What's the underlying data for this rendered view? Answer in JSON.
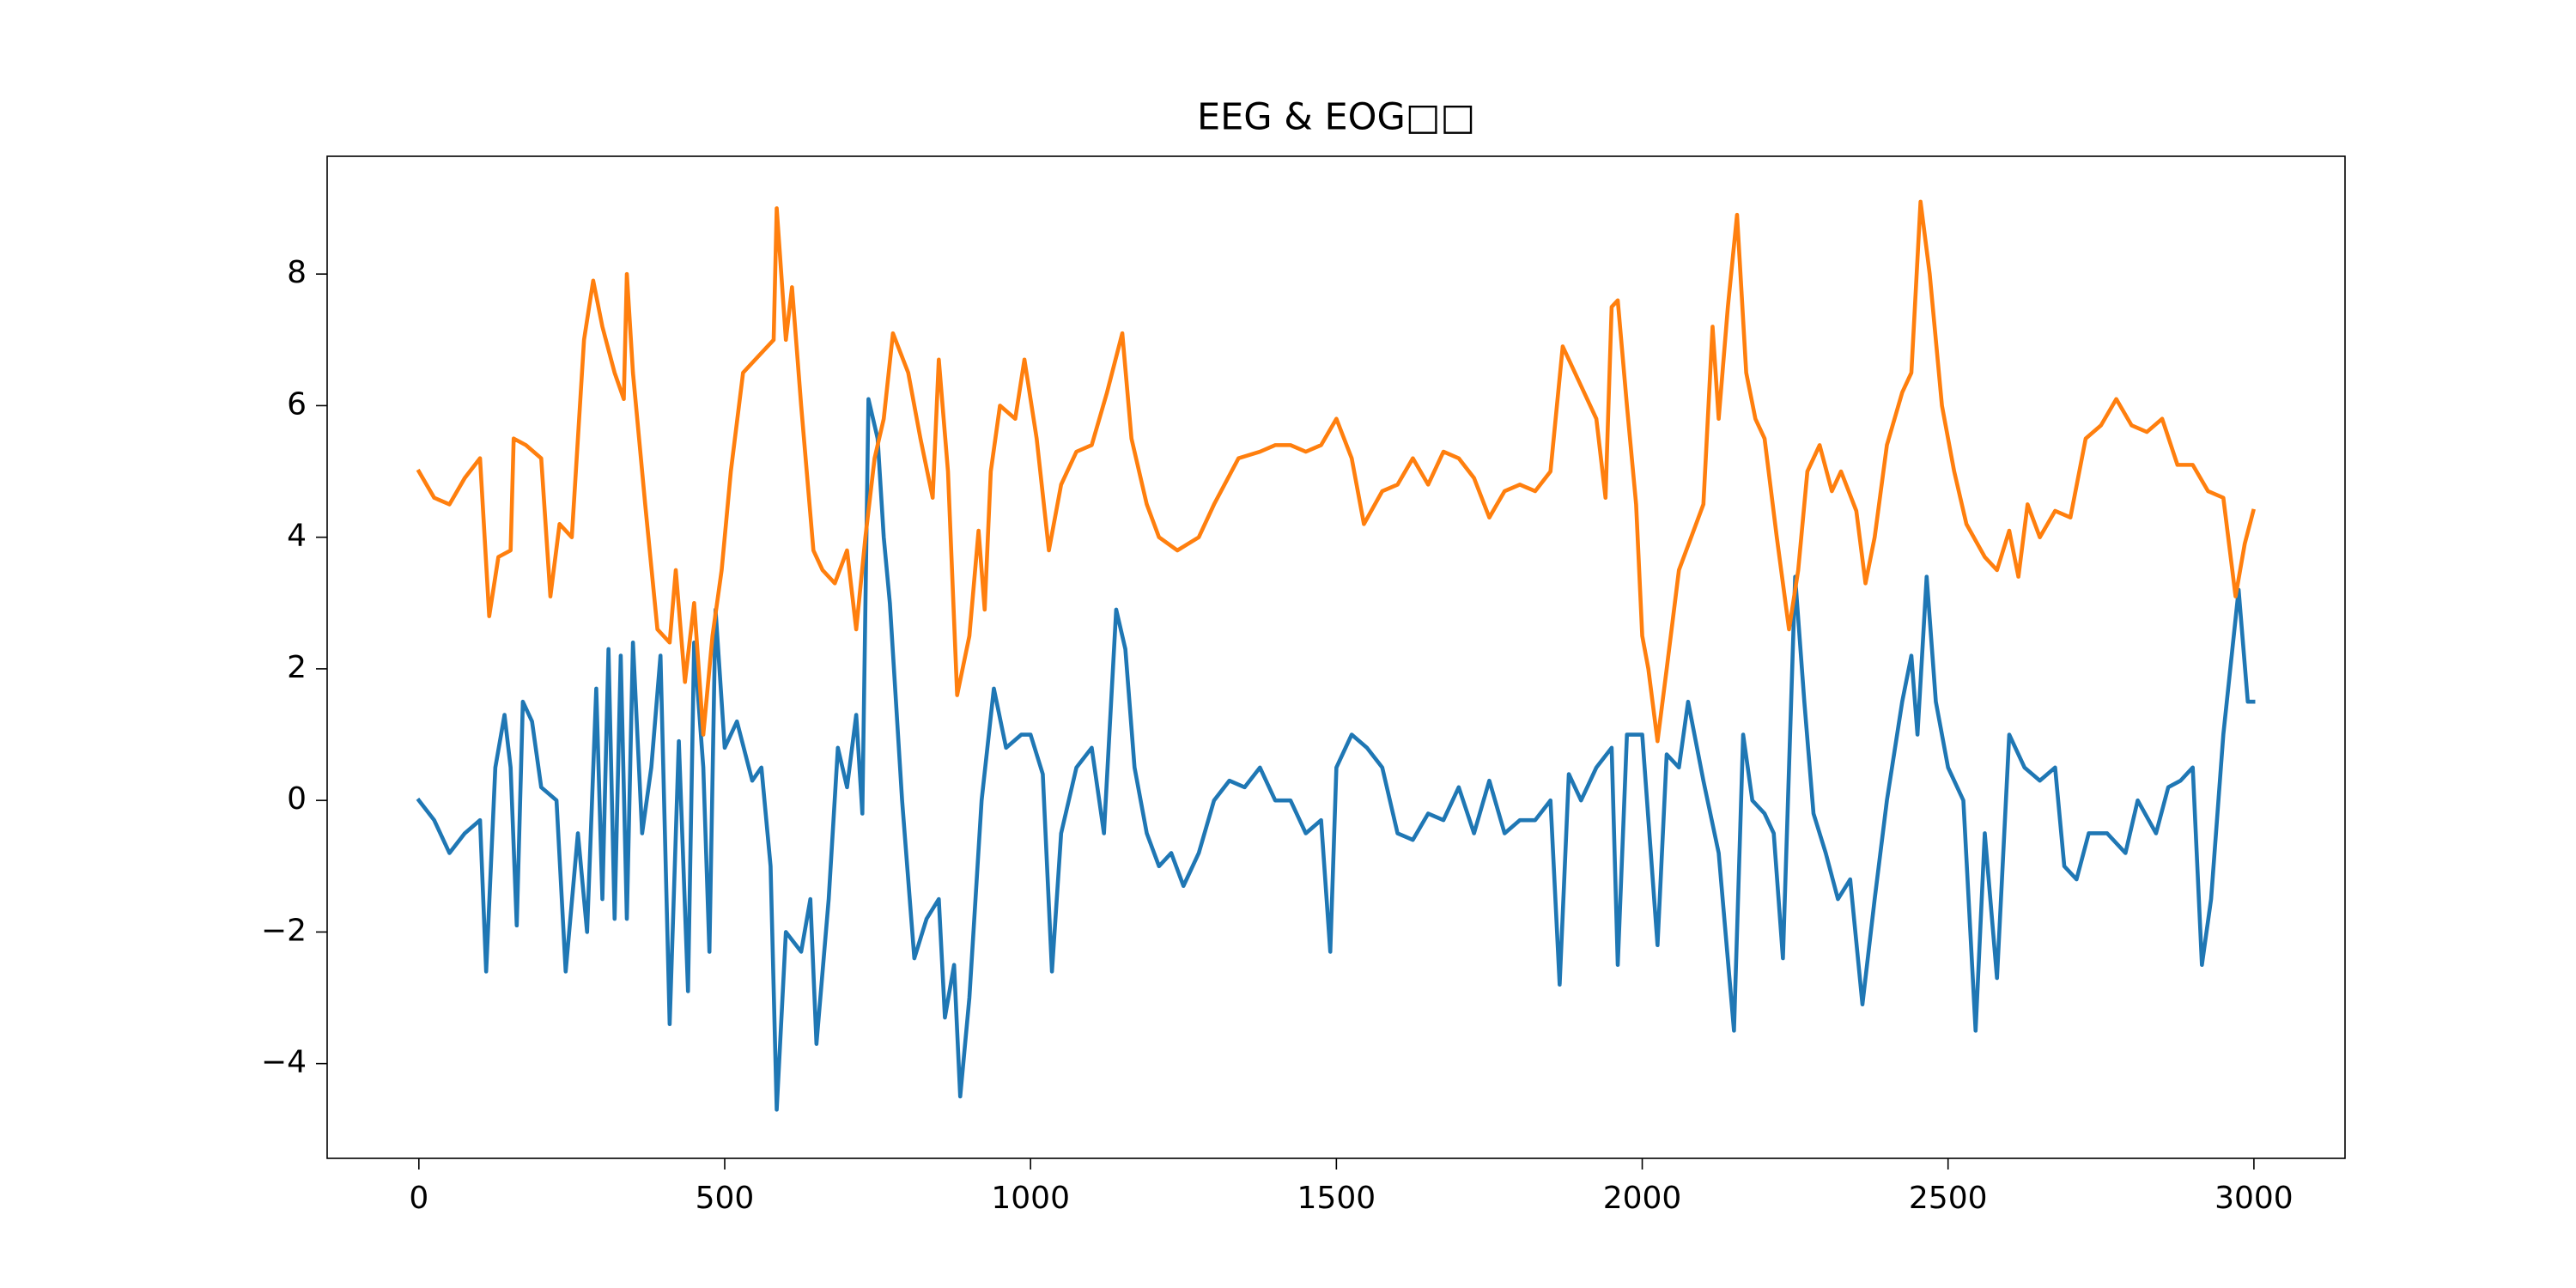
{
  "chart_data": {
    "type": "line",
    "title": "EEG & EOG□□",
    "xlim": [
      -149.95,
      3148.95
    ],
    "xticks": [
      0,
      500,
      1000,
      1500,
      2000,
      2500,
      3000
    ],
    "ylim": [
      -5.44,
      9.79
    ],
    "yticks": [
      {
        "value": -4,
        "label": "−4"
      },
      {
        "value": -2,
        "label": "−2"
      },
      0,
      2,
      4,
      6,
      8
    ],
    "grid": false,
    "series": [
      {
        "color": "#1f77b4",
        "x": [
          0,
          25,
          50,
          75,
          100,
          110,
          125,
          140,
          150,
          160,
          170,
          185,
          200,
          225,
          240,
          260,
          275,
          290,
          300,
          310,
          320,
          330,
          340,
          350,
          365,
          380,
          395,
          410,
          425,
          440,
          450,
          465,
          475,
          485,
          500,
          520,
          545,
          560,
          575,
          585,
          600,
          625,
          640,
          650,
          670,
          685,
          700,
          715,
          725,
          735,
          750,
          760,
          770,
          790,
          810,
          830,
          850,
          860,
          875,
          885,
          900,
          920,
          940,
          960,
          985,
          1000,
          1020,
          1035,
          1050,
          1075,
          1100,
          1120,
          1140,
          1155,
          1170,
          1190,
          1210,
          1230,
          1250,
          1275,
          1300,
          1325,
          1350,
          1375,
          1400,
          1425,
          1450,
          1475,
          1490,
          1500,
          1525,
          1550,
          1575,
          1600,
          1625,
          1650,
          1675,
          1700,
          1725,
          1750,
          1775,
          1800,
          1825,
          1850,
          1865,
          1880,
          1900,
          1925,
          1950,
          1960,
          1975,
          2000,
          2025,
          2040,
          2060,
          2075,
          2100,
          2125,
          2150,
          2165,
          2180,
          2200,
          2215,
          2230,
          2250,
          2265,
          2280,
          2300,
          2320,
          2340,
          2360,
          2380,
          2400,
          2425,
          2440,
          2450,
          2465,
          2480,
          2500,
          2525,
          2545,
          2560,
          2580,
          2600,
          2625,
          2650,
          2675,
          2690,
          2710,
          2730,
          2760,
          2790,
          2810,
          2840,
          2860,
          2880,
          2900,
          2915,
          2930,
          2950,
          2975,
          2990,
          2999
        ],
        "values": [
          0,
          -0.3,
          -0.8,
          -0.5,
          -0.3,
          -2.6,
          0.5,
          1.3,
          0.5,
          -1.9,
          1.5,
          1.2,
          0.2,
          0,
          -2.6,
          -0.5,
          -2,
          1.7,
          -1.5,
          2.3,
          -1.8,
          2.2,
          -1.8,
          2.4,
          -0.5,
          0.5,
          2.2,
          -3.4,
          0.9,
          -2.9,
          2.4,
          0.5,
          -2.3,
          2.9,
          0.8,
          1.2,
          0.3,
          0.5,
          -1,
          -4.7,
          -2,
          -2.3,
          -1.5,
          -3.7,
          -1.5,
          0.8,
          0.2,
          1.3,
          -0.2,
          6.1,
          5.5,
          4,
          3,
          0,
          -2.4,
          -1.8,
          -1.5,
          -3.3,
          -2.5,
          -4.5,
          -3,
          0,
          1.7,
          0.8,
          1,
          1,
          0.4,
          -2.6,
          -0.5,
          0.5,
          0.8,
          -0.5,
          2.9,
          2.3,
          0.5,
          -0.5,
          -1,
          -0.8,
          -1.3,
          -0.8,
          0,
          0.3,
          0.2,
          0.5,
          0,
          0,
          -0.5,
          -0.3,
          -2.3,
          0.5,
          1,
          0.8,
          0.5,
          -0.5,
          -0.6,
          -0.2,
          -0.3,
          0.2,
          -0.5,
          0.3,
          -0.5,
          -0.3,
          -0.3,
          0,
          -2.8,
          0.4,
          0,
          0.5,
          0.8,
          -2.5,
          1,
          1,
          -2.2,
          0.7,
          0.5,
          1.5,
          0.3,
          -0.8,
          -3.5,
          1,
          0,
          -0.2,
          -0.5,
          -2.4,
          3.4,
          1.5,
          -0.2,
          -0.8,
          -1.5,
          -1.2,
          -3.1,
          -1.5,
          0,
          1.5,
          2.2,
          1,
          3.4,
          1.5,
          0.5,
          0,
          -3.5,
          -0.5,
          -2.7,
          1,
          0.5,
          0.3,
          0.5,
          -1,
          -1.2,
          -0.5,
          -0.5,
          -0.8,
          0,
          -0.5,
          0.2,
          0.3,
          0.5,
          -2.5,
          -1.5,
          1,
          3.2,
          1.5,
          1.5
        ]
      },
      {
        "color": "#ff7f0e",
        "x": [
          0,
          25,
          50,
          75,
          100,
          115,
          130,
          150,
          155,
          175,
          200,
          215,
          230,
          250,
          270,
          285,
          300,
          320,
          335,
          340,
          350,
          370,
          390,
          410,
          420,
          435,
          450,
          465,
          480,
          495,
          510,
          530,
          560,
          580,
          585,
          600,
          610,
          625,
          645,
          660,
          680,
          700,
          715,
          730,
          745,
          760,
          775,
          800,
          820,
          840,
          850,
          865,
          880,
          900,
          915,
          925,
          935,
          950,
          975,
          990,
          1010,
          1030,
          1050,
          1075,
          1100,
          1125,
          1150,
          1165,
          1190,
          1210,
          1240,
          1275,
          1300,
          1340,
          1375,
          1400,
          1425,
          1450,
          1475,
          1500,
          1525,
          1545,
          1575,
          1600,
          1625,
          1650,
          1675,
          1700,
          1725,
          1750,
          1775,
          1800,
          1825,
          1850,
          1870,
          1900,
          1925,
          1940,
          1950,
          1960,
          1975,
          1990,
          2000,
          2010,
          2025,
          2040,
          2060,
          2080,
          2100,
          2115,
          2125,
          2140,
          2155,
          2170,
          2185,
          2200,
          2220,
          2240,
          2255,
          2270,
          2290,
          2310,
          2325,
          2350,
          2365,
          2380,
          2400,
          2425,
          2440,
          2455,
          2470,
          2490,
          2510,
          2530,
          2560,
          2580,
          2600,
          2615,
          2630,
          2650,
          2675,
          2700,
          2725,
          2750,
          2775,
          2800,
          2825,
          2850,
          2875,
          2900,
          2925,
          2950,
          2970,
          2985,
          2999
        ],
        "values": [
          5,
          4.6,
          4.5,
          4.9,
          5.2,
          2.8,
          3.7,
          3.8,
          5.5,
          5.4,
          5.2,
          3.1,
          4.2,
          4,
          7,
          7.9,
          7.2,
          6.5,
          6.1,
          8,
          6.5,
          4.5,
          2.6,
          2.4,
          3.5,
          1.8,
          3,
          1,
          2.5,
          3.5,
          5,
          6.5,
          6.8,
          7,
          9,
          7,
          7.8,
          6,
          3.8,
          3.5,
          3.3,
          3.8,
          2.6,
          4,
          5.2,
          5.8,
          7.1,
          6.5,
          5.5,
          4.6,
          6.7,
          5,
          1.6,
          2.5,
          4.1,
          2.9,
          5,
          6,
          5.8,
          6.7,
          5.5,
          3.8,
          4.8,
          5.3,
          5.4,
          6.2,
          7.1,
          5.5,
          4.5,
          4,
          3.8,
          4,
          4.5,
          5.2,
          5.3,
          5.4,
          5.4,
          5.3,
          5.4,
          5.8,
          5.2,
          4.2,
          4.7,
          4.8,
          5.2,
          4.8,
          5.3,
          5.2,
          4.9,
          4.3,
          4.7,
          4.8,
          4.7,
          5,
          6.9,
          6.3,
          5.8,
          4.6,
          7.5,
          7.6,
          6,
          4.5,
          2.5,
          2,
          0.9,
          2,
          3.5,
          4,
          4.5,
          7.2,
          5.8,
          7.5,
          8.9,
          6.5,
          5.8,
          5.5,
          4,
          2.6,
          3.5,
          5,
          5.4,
          4.7,
          5,
          4.4,
          3.3,
          4,
          5.4,
          6.2,
          6.5,
          9.1,
          8,
          6,
          5,
          4.2,
          3.7,
          3.5,
          4.1,
          3.4,
          4.5,
          4,
          4.4,
          4.3,
          5.5,
          5.7,
          6.1,
          5.7,
          5.6,
          5.8,
          5.1,
          5.1,
          4.7,
          4.6,
          3.1,
          3.9,
          4.4
        ]
      }
    ]
  }
}
